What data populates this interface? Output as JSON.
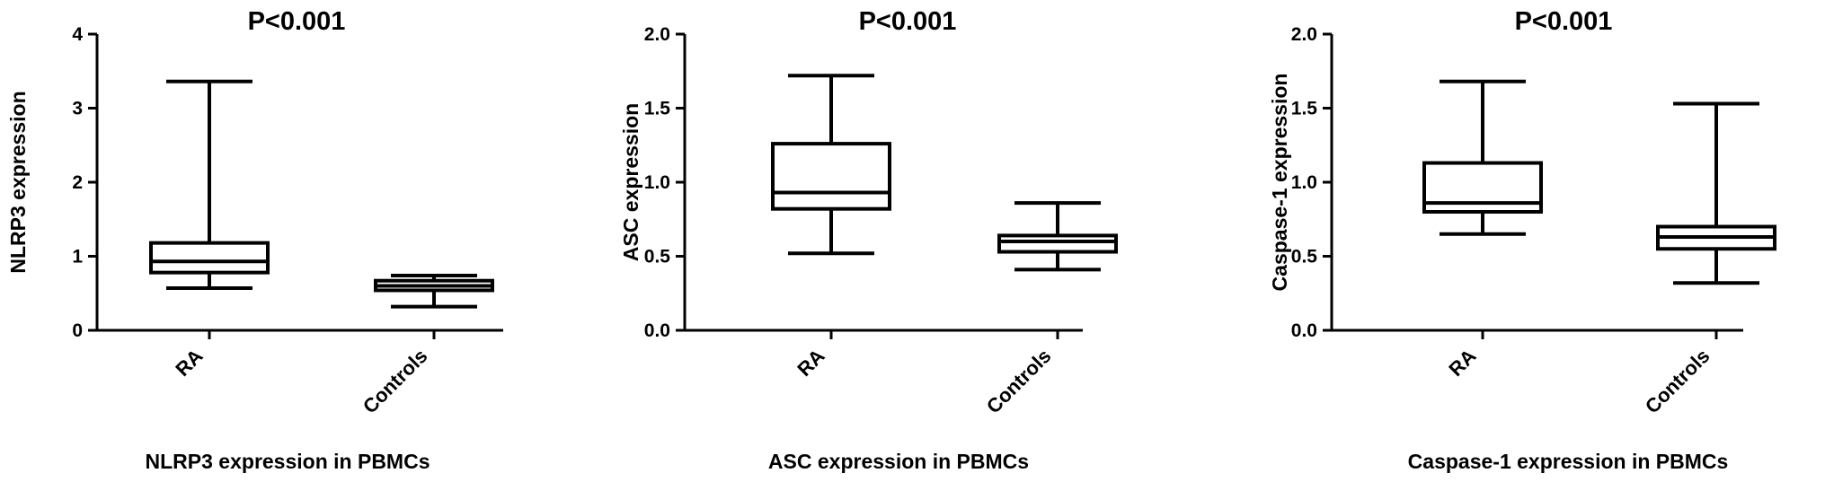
{
  "chart_data": [
    {
      "type": "box",
      "title": "P<0.001",
      "ylabel": "NLRP3 expression",
      "xlabel": "NLRP3 expression in PBMCs",
      "ylim": [
        0,
        4
      ],
      "yticks": [
        "0",
        "1",
        "2",
        "3",
        "4"
      ],
      "yticks_values": [
        0,
        1,
        2,
        3,
        4
      ],
      "categories": [
        "RA",
        "Controls"
      ],
      "boxes": [
        {
          "category": "RA",
          "min": 0.57,
          "q1": 0.78,
          "median": 0.93,
          "q3": 1.18,
          "max": 3.36
        },
        {
          "category": "Controls",
          "min": 0.32,
          "q1": 0.54,
          "median": 0.6,
          "q3": 0.67,
          "max": 0.74
        }
      ]
    },
    {
      "type": "box",
      "title": "P<0.001",
      "ylabel": "ASC expression",
      "xlabel": "ASC expression in PBMCs",
      "ylim": [
        0,
        2
      ],
      "yticks": [
        "0.0",
        "0.5",
        "1.0",
        "1.5",
        "2.0"
      ],
      "yticks_values": [
        0,
        0.5,
        1,
        1.5,
        2
      ],
      "categories": [
        "RA",
        "Controls"
      ],
      "boxes": [
        {
          "category": "RA",
          "min": 0.52,
          "q1": 0.82,
          "median": 0.93,
          "q3": 1.26,
          "max": 1.72
        },
        {
          "category": "Controls",
          "min": 0.41,
          "q1": 0.53,
          "median": 0.6,
          "q3": 0.64,
          "max": 0.86
        }
      ]
    },
    {
      "type": "box",
      "title": "P<0.001",
      "ylabel": "Caspase-1 expression",
      "xlabel": "Caspase-1 expression in PBMCs",
      "ylim": [
        0,
        2
      ],
      "yticks": [
        "0.0",
        "0.5",
        "1.0",
        "1.5",
        "2.0"
      ],
      "yticks_values": [
        0,
        0.5,
        1,
        1.5,
        2
      ],
      "categories": [
        "RA",
        "Controls"
      ],
      "boxes": [
        {
          "category": "RA",
          "min": 0.65,
          "q1": 0.8,
          "median": 0.86,
          "q3": 1.13,
          "max": 1.68
        },
        {
          "category": "Controls",
          "min": 0.32,
          "q1": 0.55,
          "median": 0.63,
          "q3": 0.7,
          "max": 1.53
        }
      ]
    }
  ]
}
